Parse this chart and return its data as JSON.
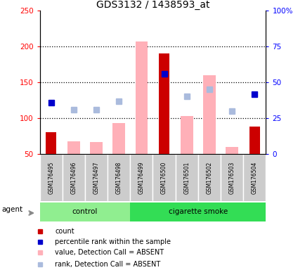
{
  "title": "GDS3132 / 1438593_at",
  "samples": [
    "GSM176495",
    "GSM176496",
    "GSM176497",
    "GSM176498",
    "GSM176499",
    "GSM176500",
    "GSM176501",
    "GSM176502",
    "GSM176503",
    "GSM176504"
  ],
  "count_values": [
    80,
    null,
    null,
    null,
    null,
    190,
    null,
    null,
    null,
    88
  ],
  "rank_values": [
    122,
    null,
    null,
    null,
    null,
    162,
    null,
    null,
    null,
    133
  ],
  "absent_value_bars": [
    null,
    68,
    67,
    93,
    207,
    null,
    103,
    160,
    60,
    null
  ],
  "absent_rank_squares": [
    null,
    112,
    112,
    124,
    null,
    null,
    130,
    140,
    110,
    null
  ],
  "ylim_left": [
    50,
    250
  ],
  "ylim_right": [
    0,
    100
  ],
  "yticks_left": [
    50,
    100,
    150,
    200,
    250
  ],
  "yticks_right": [
    0,
    25,
    50,
    75,
    100
  ],
  "ytick_labels_left": [
    "50",
    "100",
    "150",
    "200",
    "250"
  ],
  "ytick_labels_right": [
    "0",
    "25",
    "50",
    "75",
    "100%"
  ],
  "count_color": "#CC0000",
  "rank_color": "#0000CC",
  "absent_value_color": "#FFB0B8",
  "absent_rank_color": "#AABBDD",
  "control_group_color": "#90EE90",
  "smoke_group_color": "#33DD55",
  "control_indices": [
    0,
    1,
    2,
    3
  ],
  "smoke_indices": [
    4,
    5,
    6,
    7,
    8,
    9
  ],
  "legend_items": [
    {
      "label": "count",
      "color": "#CC0000"
    },
    {
      "label": "percentile rank within the sample",
      "color": "#0000CC"
    },
    {
      "label": "value, Detection Call = ABSENT",
      "color": "#FFB0B8"
    },
    {
      "label": "rank, Detection Call = ABSENT",
      "color": "#AABBDD"
    }
  ]
}
